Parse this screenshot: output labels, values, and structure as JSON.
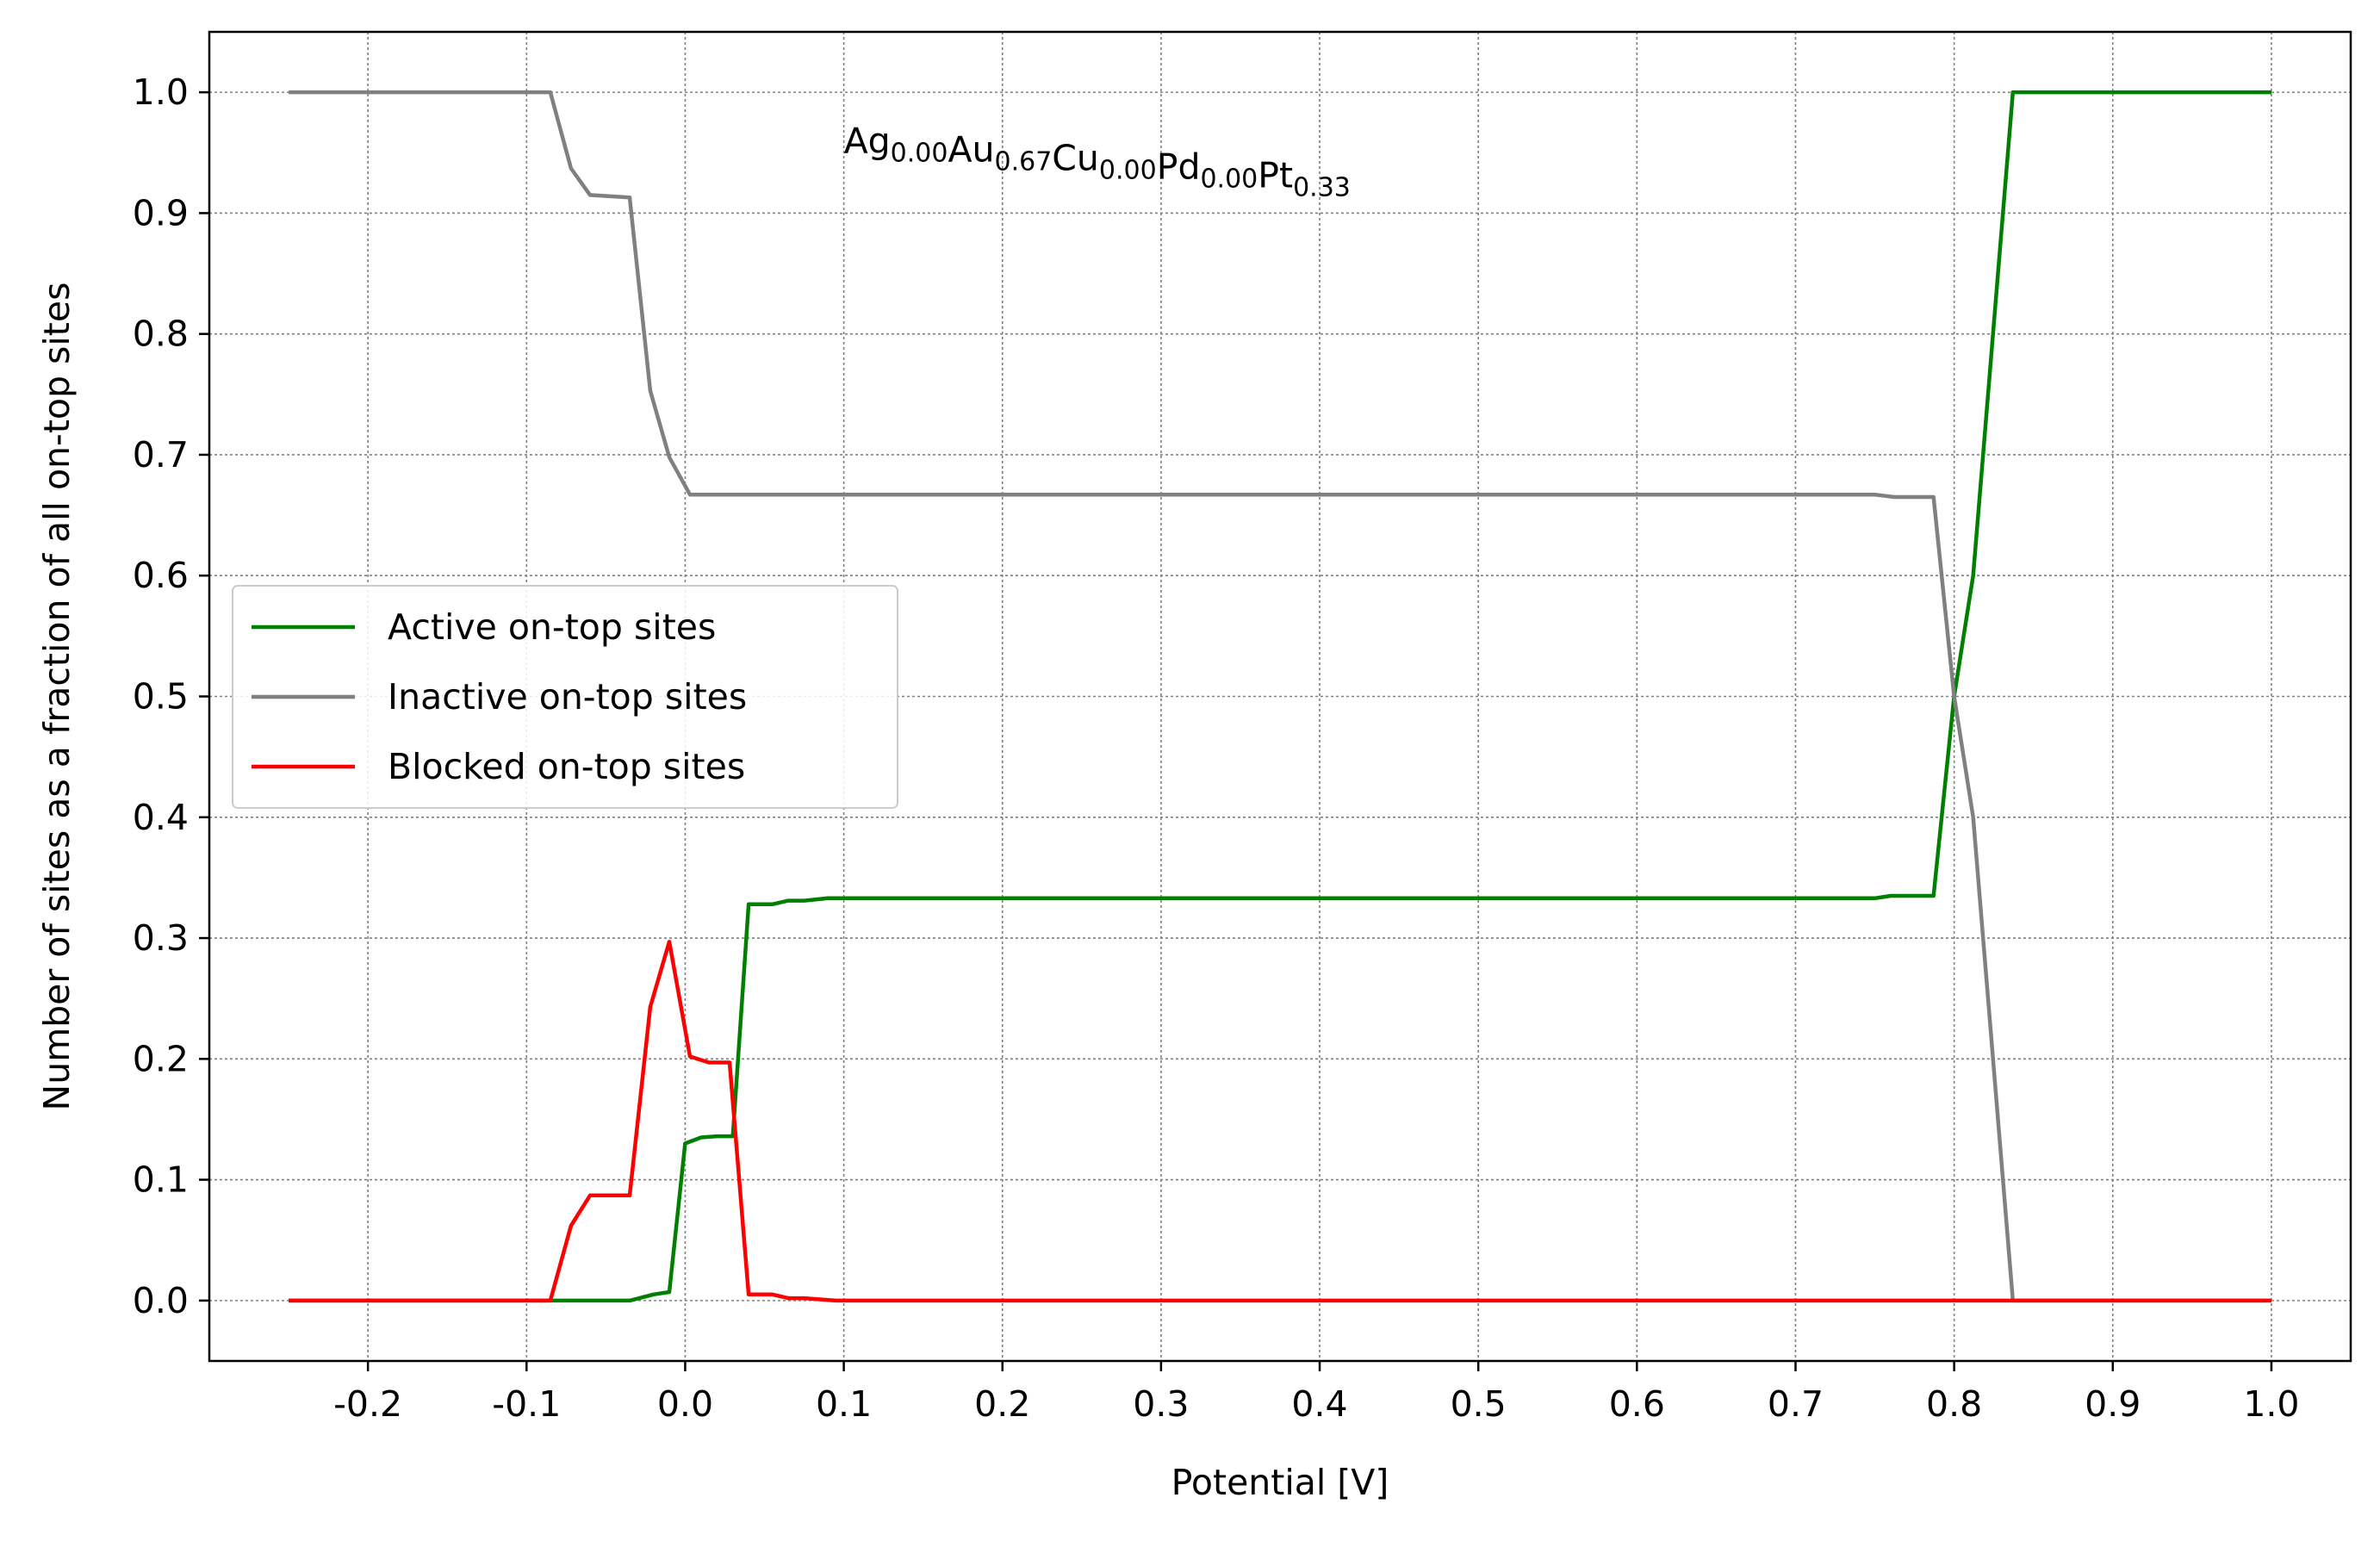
{
  "chart_data": {
    "type": "line",
    "title": "",
    "xlabel": "Potential [V]",
    "ylabel": "Number of sites as a fraction of all on-top sites",
    "xlim": [
      -0.3,
      1.05
    ],
    "ylim": [
      -0.05,
      1.05
    ],
    "xticks": [
      -0.2,
      -0.1,
      0.0,
      0.1,
      0.2,
      0.3,
      0.4,
      0.5,
      0.6,
      0.7,
      0.8,
      0.9,
      1.0
    ],
    "xtick_labels": [
      "-0.2",
      "-0.1",
      "0.0",
      "0.1",
      "0.2",
      "0.3",
      "0.4",
      "0.5",
      "0.6",
      "0.7",
      "0.8",
      "0.9",
      "1.0"
    ],
    "yticks": [
      0.0,
      0.1,
      0.2,
      0.3,
      0.4,
      0.5,
      0.6,
      0.7,
      0.8,
      0.9,
      1.0
    ],
    "ytick_labels": [
      "0.0",
      "0.1",
      "0.2",
      "0.3",
      "0.4",
      "0.5",
      "0.6",
      "0.7",
      "0.8",
      "0.9",
      "1.0"
    ],
    "grid": true,
    "legend_position": "center-left",
    "annotation": {
      "parts": [
        {
          "base": "Ag",
          "sub": "0.00"
        },
        {
          "base": "Au",
          "sub": "0.67"
        },
        {
          "base": "Cu",
          "sub": "0.00"
        },
        {
          "base": "Pd",
          "sub": "0.00"
        },
        {
          "base": "Pt",
          "sub": "0.33"
        }
      ],
      "x": 0.1,
      "y": 0.95
    },
    "series": [
      {
        "name": "Active on-top sites",
        "color": "#008000",
        "points": [
          [
            -0.25,
            0.0
          ],
          [
            -0.09,
            0.0
          ],
          [
            -0.035,
            0.0
          ],
          [
            -0.02,
            0.005
          ],
          [
            -0.01,
            0.007
          ],
          [
            0.0,
            0.13
          ],
          [
            0.01,
            0.135
          ],
          [
            0.02,
            0.136
          ],
          [
            0.03,
            0.136
          ],
          [
            0.04,
            0.328
          ],
          [
            0.055,
            0.328
          ],
          [
            0.065,
            0.331
          ],
          [
            0.075,
            0.331
          ],
          [
            0.09,
            0.333
          ],
          [
            0.75,
            0.333
          ],
          [
            0.76,
            0.335
          ],
          [
            0.787,
            0.335
          ],
          [
            0.8,
            0.5
          ],
          [
            0.812,
            0.6
          ],
          [
            0.837,
            1.0
          ],
          [
            1.0,
            1.0
          ]
        ]
      },
      {
        "name": "Inactive on-top sites",
        "color": "#808080",
        "points": [
          [
            -0.25,
            1.0
          ],
          [
            -0.085,
            1.0
          ],
          [
            -0.072,
            0.937
          ],
          [
            -0.06,
            0.915
          ],
          [
            -0.035,
            0.913
          ],
          [
            -0.022,
            0.753
          ],
          [
            -0.01,
            0.698
          ],
          [
            0.003,
            0.667
          ],
          [
            0.75,
            0.667
          ],
          [
            0.762,
            0.665
          ],
          [
            0.787,
            0.665
          ],
          [
            0.8,
            0.5
          ],
          [
            0.812,
            0.4
          ],
          [
            0.837,
            0.0
          ],
          [
            1.0,
            0.0
          ]
        ]
      },
      {
        "name": "Blocked on-top sites",
        "color": "#ff0000",
        "points": [
          [
            -0.25,
            0.0
          ],
          [
            -0.085,
            0.0
          ],
          [
            -0.072,
            0.062
          ],
          [
            -0.06,
            0.087
          ],
          [
            -0.035,
            0.087
          ],
          [
            -0.022,
            0.243
          ],
          [
            -0.01,
            0.297
          ],
          [
            0.003,
            0.202
          ],
          [
            0.015,
            0.197
          ],
          [
            0.028,
            0.197
          ],
          [
            0.04,
            0.005
          ],
          [
            0.055,
            0.005
          ],
          [
            0.065,
            0.002
          ],
          [
            0.075,
            0.002
          ],
          [
            0.095,
            0.0
          ],
          [
            1.0,
            0.0
          ]
        ]
      }
    ]
  }
}
